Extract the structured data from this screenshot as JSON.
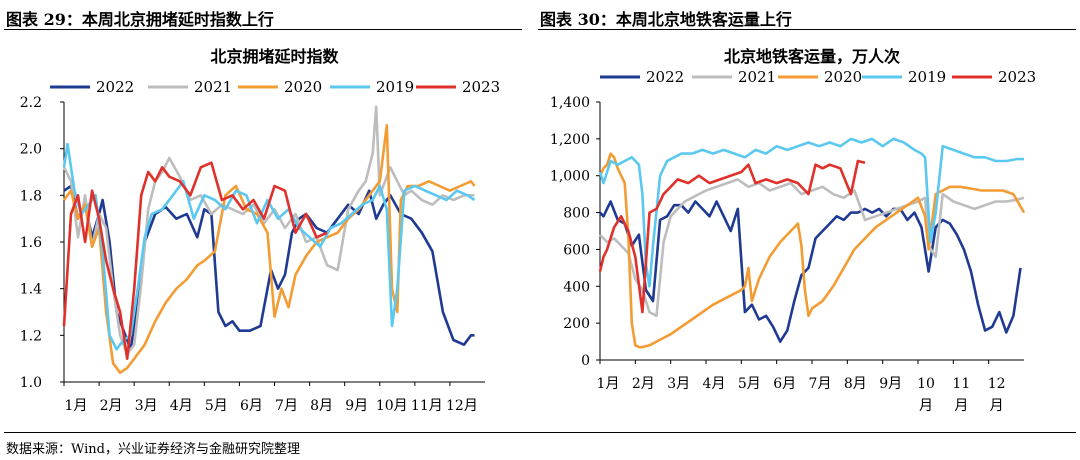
{
  "panels": {
    "left_heading": "图表 29：本周北京拥堵延时指数上行",
    "right_heading": "图表 30：本周北京地铁客运量上行"
  },
  "source": "数据来源：Wind，兴业证券经济与金融研究院整理",
  "colors": {
    "2022": "#1f3a93",
    "2021": "#bdbdbd",
    "2020": "#f39c34",
    "2019": "#5bc8f0",
    "2023": "#e0302a"
  },
  "chart_data": [
    {
      "type": "line",
      "title": "北京拥堵延时指数",
      "xlabel": "",
      "ylabel": "",
      "ylim": [
        1.0,
        2.2
      ],
      "yticks": [
        "1.0",
        "1.2",
        "1.4",
        "1.6",
        "1.8",
        "2.0",
        "2.2"
      ],
      "xticks": [
        "1月",
        "2月",
        "3月",
        "4月",
        "5月",
        "6月",
        "7月",
        "8月",
        "9月",
        "10月",
        "11月",
        "12月"
      ],
      "grid": false,
      "legend": "top",
      "series": [
        {
          "name": "2022",
          "x": [
            1,
            1.2,
            1.4,
            1.6,
            1.8,
            2.0,
            2.1,
            2.3,
            2.5,
            2.7,
            2.9,
            3.1,
            3.3,
            3.6,
            3.9,
            4.2,
            4.5,
            4.8,
            5.0,
            5.2,
            5.4,
            5.6,
            5.8,
            6.0,
            6.3,
            6.6,
            6.9,
            7.1,
            7.3,
            7.5,
            7.7,
            7.9,
            8.2,
            8.5,
            8.8,
            9.1,
            9.4,
            9.7,
            9.9,
            10.1,
            10.3,
            10.6,
            10.9,
            11.2,
            11.5,
            11.8,
            12.1,
            12.4,
            12.6,
            12.7
          ],
          "y": [
            1.82,
            1.84,
            1.7,
            1.76,
            1.62,
            1.72,
            1.78,
            1.6,
            1.3,
            1.22,
            1.14,
            1.35,
            1.6,
            1.72,
            1.75,
            1.7,
            1.72,
            1.62,
            1.74,
            1.72,
            1.3,
            1.24,
            1.26,
            1.22,
            1.22,
            1.24,
            1.48,
            1.4,
            1.46,
            1.64,
            1.7,
            1.72,
            1.66,
            1.64,
            1.7,
            1.76,
            1.72,
            1.82,
            1.7,
            1.76,
            1.8,
            1.72,
            1.7,
            1.64,
            1.56,
            1.3,
            1.18,
            1.16,
            1.2,
            1.2
          ]
        },
        {
          "name": "2021",
          "x": [
            1,
            1.2,
            1.4,
            1.6,
            1.8,
            2.0,
            2.2,
            2.4,
            2.6,
            2.8,
            3.0,
            3.2,
            3.4,
            3.6,
            3.8,
            4.0,
            4.3,
            4.6,
            4.9,
            5.2,
            5.5,
            5.8,
            6.1,
            6.4,
            6.7,
            7.0,
            7.3,
            7.6,
            7.9,
            8.2,
            8.5,
            8.8,
            9.1,
            9.4,
            9.6,
            9.8,
            9.9,
            10.0,
            10.1,
            10.3,
            10.5,
            10.7,
            10.9,
            11.2,
            11.5,
            11.8,
            12.1,
            12.4,
            12.7
          ],
          "y": [
            1.92,
            1.86,
            1.62,
            1.8,
            1.58,
            1.72,
            1.66,
            1.4,
            1.2,
            1.12,
            1.16,
            1.42,
            1.74,
            1.86,
            1.9,
            1.96,
            1.88,
            1.78,
            1.8,
            1.72,
            1.76,
            1.74,
            1.72,
            1.76,
            1.68,
            1.74,
            1.66,
            1.72,
            1.6,
            1.62,
            1.5,
            1.48,
            1.74,
            1.82,
            1.86,
            1.98,
            2.18,
            1.8,
            1.84,
            1.92,
            1.86,
            1.8,
            1.82,
            1.78,
            1.76,
            1.8,
            1.78,
            1.8,
            1.8
          ]
        },
        {
          "name": "2020",
          "x": [
            1,
            1.2,
            1.4,
            1.6,
            1.8,
            2.0,
            2.2,
            2.4,
            2.6,
            2.8,
            3.0,
            3.3,
            3.6,
            3.9,
            4.2,
            4.5,
            4.8,
            5.0,
            5.3,
            5.6,
            5.9,
            6.2,
            6.5,
            6.8,
            7.0,
            7.2,
            7.4,
            7.6,
            7.9,
            8.2,
            8.5,
            8.8,
            9.1,
            9.4,
            9.7,
            10.0,
            10.2,
            10.35,
            10.5,
            10.6,
            10.8,
            11.1,
            11.4,
            11.7,
            12.0,
            12.3,
            12.6,
            12.7
          ],
          "y": [
            1.78,
            1.82,
            1.7,
            1.76,
            1.58,
            1.66,
            1.3,
            1.08,
            1.04,
            1.06,
            1.1,
            1.16,
            1.26,
            1.34,
            1.4,
            1.44,
            1.5,
            1.52,
            1.56,
            1.8,
            1.84,
            1.74,
            1.72,
            1.64,
            1.28,
            1.4,
            1.32,
            1.46,
            1.54,
            1.6,
            1.62,
            1.64,
            1.7,
            1.74,
            1.8,
            1.86,
            2.1,
            1.4,
            1.3,
            1.78,
            1.84,
            1.84,
            1.86,
            1.84,
            1.82,
            1.84,
            1.86,
            1.84
          ]
        },
        {
          "name": "2019",
          "x": [
            1,
            1.1,
            1.3,
            1.5,
            1.7,
            1.9,
            2.1,
            2.3,
            2.5,
            2.7,
            2.9,
            3.1,
            3.3,
            3.5,
            3.8,
            4.1,
            4.4,
            4.7,
            5.0,
            5.3,
            5.6,
            5.9,
            6.2,
            6.5,
            6.8,
            7.1,
            7.4,
            7.7,
            8.0,
            8.3,
            8.6,
            8.9,
            9.2,
            9.5,
            9.8,
            10.0,
            10.2,
            10.35,
            10.5,
            10.7,
            11.0,
            11.3,
            11.6,
            11.9,
            12.2,
            12.5,
            12.7
          ],
          "y": [
            1.92,
            2.02,
            1.82,
            1.72,
            1.76,
            1.8,
            1.56,
            1.2,
            1.14,
            1.18,
            1.2,
            1.4,
            1.62,
            1.72,
            1.74,
            1.8,
            1.86,
            1.7,
            1.8,
            1.78,
            1.74,
            1.82,
            1.8,
            1.68,
            1.78,
            1.7,
            1.74,
            1.66,
            1.62,
            1.58,
            1.66,
            1.68,
            1.72,
            1.76,
            1.78,
            1.84,
            1.74,
            1.24,
            1.4,
            1.82,
            1.84,
            1.82,
            1.8,
            1.78,
            1.82,
            1.8,
            1.78
          ]
        },
        {
          "name": "2023",
          "x": [
            1,
            1.2,
            1.4,
            1.6,
            1.8,
            2.0,
            2.2,
            2.4,
            2.6,
            2.8,
            3.0,
            3.2,
            3.4,
            3.6,
            3.8,
            4.0,
            4.3,
            4.6,
            4.9,
            5.2,
            5.5,
            5.8,
            6.1,
            6.4,
            6.7,
            7.0,
            7.3,
            7.6,
            7.9,
            8.2,
            8.5
          ],
          "y": [
            1.24,
            1.72,
            1.8,
            1.6,
            1.82,
            1.7,
            1.52,
            1.4,
            1.3,
            1.1,
            1.4,
            1.8,
            1.9,
            1.86,
            1.92,
            1.88,
            1.86,
            1.8,
            1.92,
            1.94,
            1.78,
            1.8,
            1.74,
            1.78,
            1.7,
            1.84,
            1.82,
            1.64,
            1.72,
            1.62,
            1.64
          ]
        }
      ]
    },
    {
      "type": "line",
      "title": "北京地铁客运量，万人次",
      "xlabel": "",
      "ylabel": "",
      "ylim": [
        0,
        1400
      ],
      "yticks": [
        "0",
        "200",
        "400",
        "600",
        "800",
        "1,000",
        "1,200",
        "1,400"
      ],
      "xticks": [
        "1月",
        "2月",
        "3月",
        "4月",
        "5月",
        "6月",
        "7月",
        "8月",
        "9月",
        "10\n月",
        "11\n月",
        "12\n月"
      ],
      "grid": false,
      "legend": "top",
      "series": [
        {
          "name": "2022",
          "x": [
            1,
            1.1,
            1.3,
            1.5,
            1.7,
            1.9,
            2.1,
            2.3,
            2.5,
            2.7,
            2.9,
            3.1,
            3.3,
            3.5,
            3.7,
            3.9,
            4.1,
            4.3,
            4.5,
            4.7,
            4.9,
            5.1,
            5.3,
            5.5,
            5.7,
            5.9,
            6.1,
            6.3,
            6.5,
            6.7,
            6.9,
            7.1,
            7.3,
            7.5,
            7.7,
            7.9,
            8.1,
            8.3,
            8.5,
            8.7,
            8.9,
            9.1,
            9.3,
            9.5,
            9.7,
            9.9,
            10.1,
            10.3,
            10.5,
            10.7,
            10.9,
            11.1,
            11.3,
            11.5,
            11.7,
            11.9,
            12.1,
            12.3,
            12.5,
            12.7,
            12.9
          ],
          "y": [
            800,
            780,
            860,
            760,
            740,
            620,
            680,
            380,
            320,
            760,
            780,
            840,
            840,
            800,
            860,
            820,
            780,
            860,
            780,
            700,
            820,
            260,
            300,
            220,
            240,
            180,
            100,
            160,
            320,
            460,
            500,
            660,
            700,
            740,
            780,
            760,
            800,
            800,
            820,
            800,
            820,
            780,
            820,
            820,
            760,
            800,
            720,
            480,
            720,
            760,
            740,
            680,
            600,
            480,
            300,
            160,
            180,
            260,
            150,
            240,
            500
          ]
        },
        {
          "name": "2021",
          "x": [
            1,
            1.2,
            1.4,
            1.6,
            1.8,
            2.0,
            2.2,
            2.4,
            2.6,
            2.8,
            3.0,
            3.2,
            3.4,
            3.6,
            3.8,
            4.0,
            4.3,
            4.6,
            4.9,
            5.2,
            5.5,
            5.8,
            6.1,
            6.4,
            6.7,
            7.0,
            7.3,
            7.6,
            7.9,
            8.2,
            8.5,
            8.8,
            9.1,
            9.4,
            9.7,
            10.0,
            10.2,
            10.3,
            10.5,
            10.7,
            11.0,
            11.3,
            11.6,
            11.9,
            12.2,
            12.5,
            12.8,
            13.0
          ],
          "y": [
            680,
            640,
            660,
            620,
            580,
            440,
            380,
            260,
            240,
            640,
            780,
            820,
            860,
            880,
            900,
            920,
            940,
            960,
            980,
            940,
            960,
            920,
            940,
            960,
            900,
            920,
            940,
            900,
            880,
            920,
            760,
            780,
            800,
            820,
            840,
            860,
            880,
            620,
            560,
            900,
            860,
            840,
            820,
            840,
            860,
            860,
            870,
            880
          ]
        },
        {
          "name": "2020",
          "x": [
            1,
            1.1,
            1.2,
            1.3,
            1.4,
            1.5,
            1.6,
            1.7,
            1.8,
            1.9,
            2.0,
            2.1,
            2.2,
            2.4,
            2.6,
            2.8,
            3.0,
            3.3,
            3.6,
            3.9,
            4.2,
            4.5,
            4.8,
            5.0,
            5.1,
            5.2,
            5.3,
            5.5,
            5.8,
            6.1,
            6.4,
            6.6,
            6.7,
            6.8,
            6.9,
            7.0,
            7.3,
            7.6,
            7.9,
            8.2,
            8.5,
            8.8,
            9.1,
            9.4,
            9.7,
            10.0,
            10.2,
            10.3,
            10.5,
            10.7,
            10.9,
            11.2,
            11.5,
            11.8,
            12.1,
            12.4,
            12.7,
            13.0
          ],
          "y": [
            1000,
            1040,
            1060,
            1120,
            1100,
            1040,
            1000,
            960,
            680,
            200,
            80,
            70,
            70,
            80,
            100,
            120,
            140,
            180,
            220,
            260,
            300,
            330,
            360,
            380,
            400,
            500,
            320,
            440,
            560,
            640,
            700,
            740,
            620,
            380,
            240,
            280,
            320,
            400,
            500,
            600,
            660,
            720,
            760,
            800,
            840,
            880,
            780,
            600,
            900,
            920,
            940,
            940,
            930,
            920,
            920,
            920,
            900,
            800
          ]
        },
        {
          "name": "2019",
          "x": [
            1,
            1.1,
            1.3,
            1.5,
            1.7,
            1.9,
            2.1,
            2.2,
            2.3,
            2.4,
            2.5,
            2.7,
            2.9,
            3.1,
            3.3,
            3.6,
            3.9,
            4.2,
            4.5,
            4.8,
            5.1,
            5.4,
            5.7,
            6.0,
            6.3,
            6.6,
            6.9,
            7.2,
            7.5,
            7.8,
            8.1,
            8.4,
            8.7,
            9.0,
            9.3,
            9.6,
            9.9,
            10.1,
            10.2,
            10.35,
            10.5,
            10.7,
            11.0,
            11.3,
            11.6,
            11.9,
            12.2,
            12.5,
            12.8,
            13.0
          ],
          "y": [
            1020,
            960,
            1080,
            1060,
            1080,
            1100,
            1060,
            900,
            520,
            400,
            620,
            1000,
            1080,
            1100,
            1120,
            1120,
            1140,
            1120,
            1140,
            1120,
            1100,
            1140,
            1120,
            1160,
            1140,
            1160,
            1180,
            1160,
            1180,
            1160,
            1200,
            1180,
            1200,
            1160,
            1200,
            1180,
            1140,
            1120,
            1100,
            640,
            800,
            1160,
            1140,
            1120,
            1100,
            1100,
            1080,
            1080,
            1090,
            1090
          ]
        },
        {
          "name": "2023",
          "x": [
            1,
            1.1,
            1.2,
            1.4,
            1.6,
            1.8,
            2.0,
            2.2,
            2.4,
            2.6,
            2.8,
            3.0,
            3.2,
            3.5,
            3.8,
            4.1,
            4.4,
            4.7,
            5.0,
            5.2,
            5.4,
            5.7,
            6.0,
            6.3,
            6.6,
            6.9,
            7.1,
            7.3,
            7.5,
            7.8,
            8.1,
            8.3,
            8.5
          ],
          "y": [
            480,
            560,
            600,
            720,
            780,
            700,
            560,
            260,
            800,
            820,
            900,
            940,
            980,
            960,
            1000,
            960,
            980,
            1000,
            1020,
            1060,
            960,
            980,
            960,
            980,
            960,
            900,
            1060,
            1040,
            1060,
            1040,
            900,
            1080,
            1070
          ]
        }
      ]
    }
  ]
}
